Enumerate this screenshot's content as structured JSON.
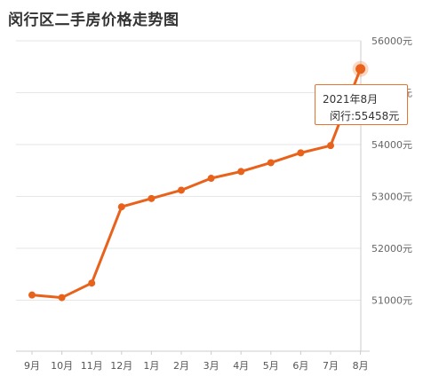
{
  "title": "闵行区二手房价格走势图",
  "colors": {
    "line": "#e8621c",
    "grid": "#e6e6e6",
    "tooltip_border": "#e8732a"
  },
  "tooltip": {
    "date": "2021年8月",
    "label": "闵行:55458元"
  },
  "chart_data": {
    "type": "line",
    "title": "闵行区二手房价格走势图",
    "categories": [
      "9月",
      "10月",
      "11月",
      "12月",
      "1月",
      "2月",
      "3月",
      "4月",
      "5月",
      "6月",
      "7月",
      "8月"
    ],
    "series": [
      {
        "name": "闵行",
        "values": [
          51100,
          51050,
          51330,
          52800,
          52960,
          53120,
          53350,
          53480,
          53650,
          53840,
          53980,
          55458
        ]
      }
    ],
    "y_ticks": [
      "56000元",
      "55000元",
      "54000元",
      "53000元",
      "52000元",
      "51000元"
    ],
    "ylim": [
      50000,
      56000
    ],
    "grid": true,
    "legend": "none",
    "highlighted_point": 11
  }
}
